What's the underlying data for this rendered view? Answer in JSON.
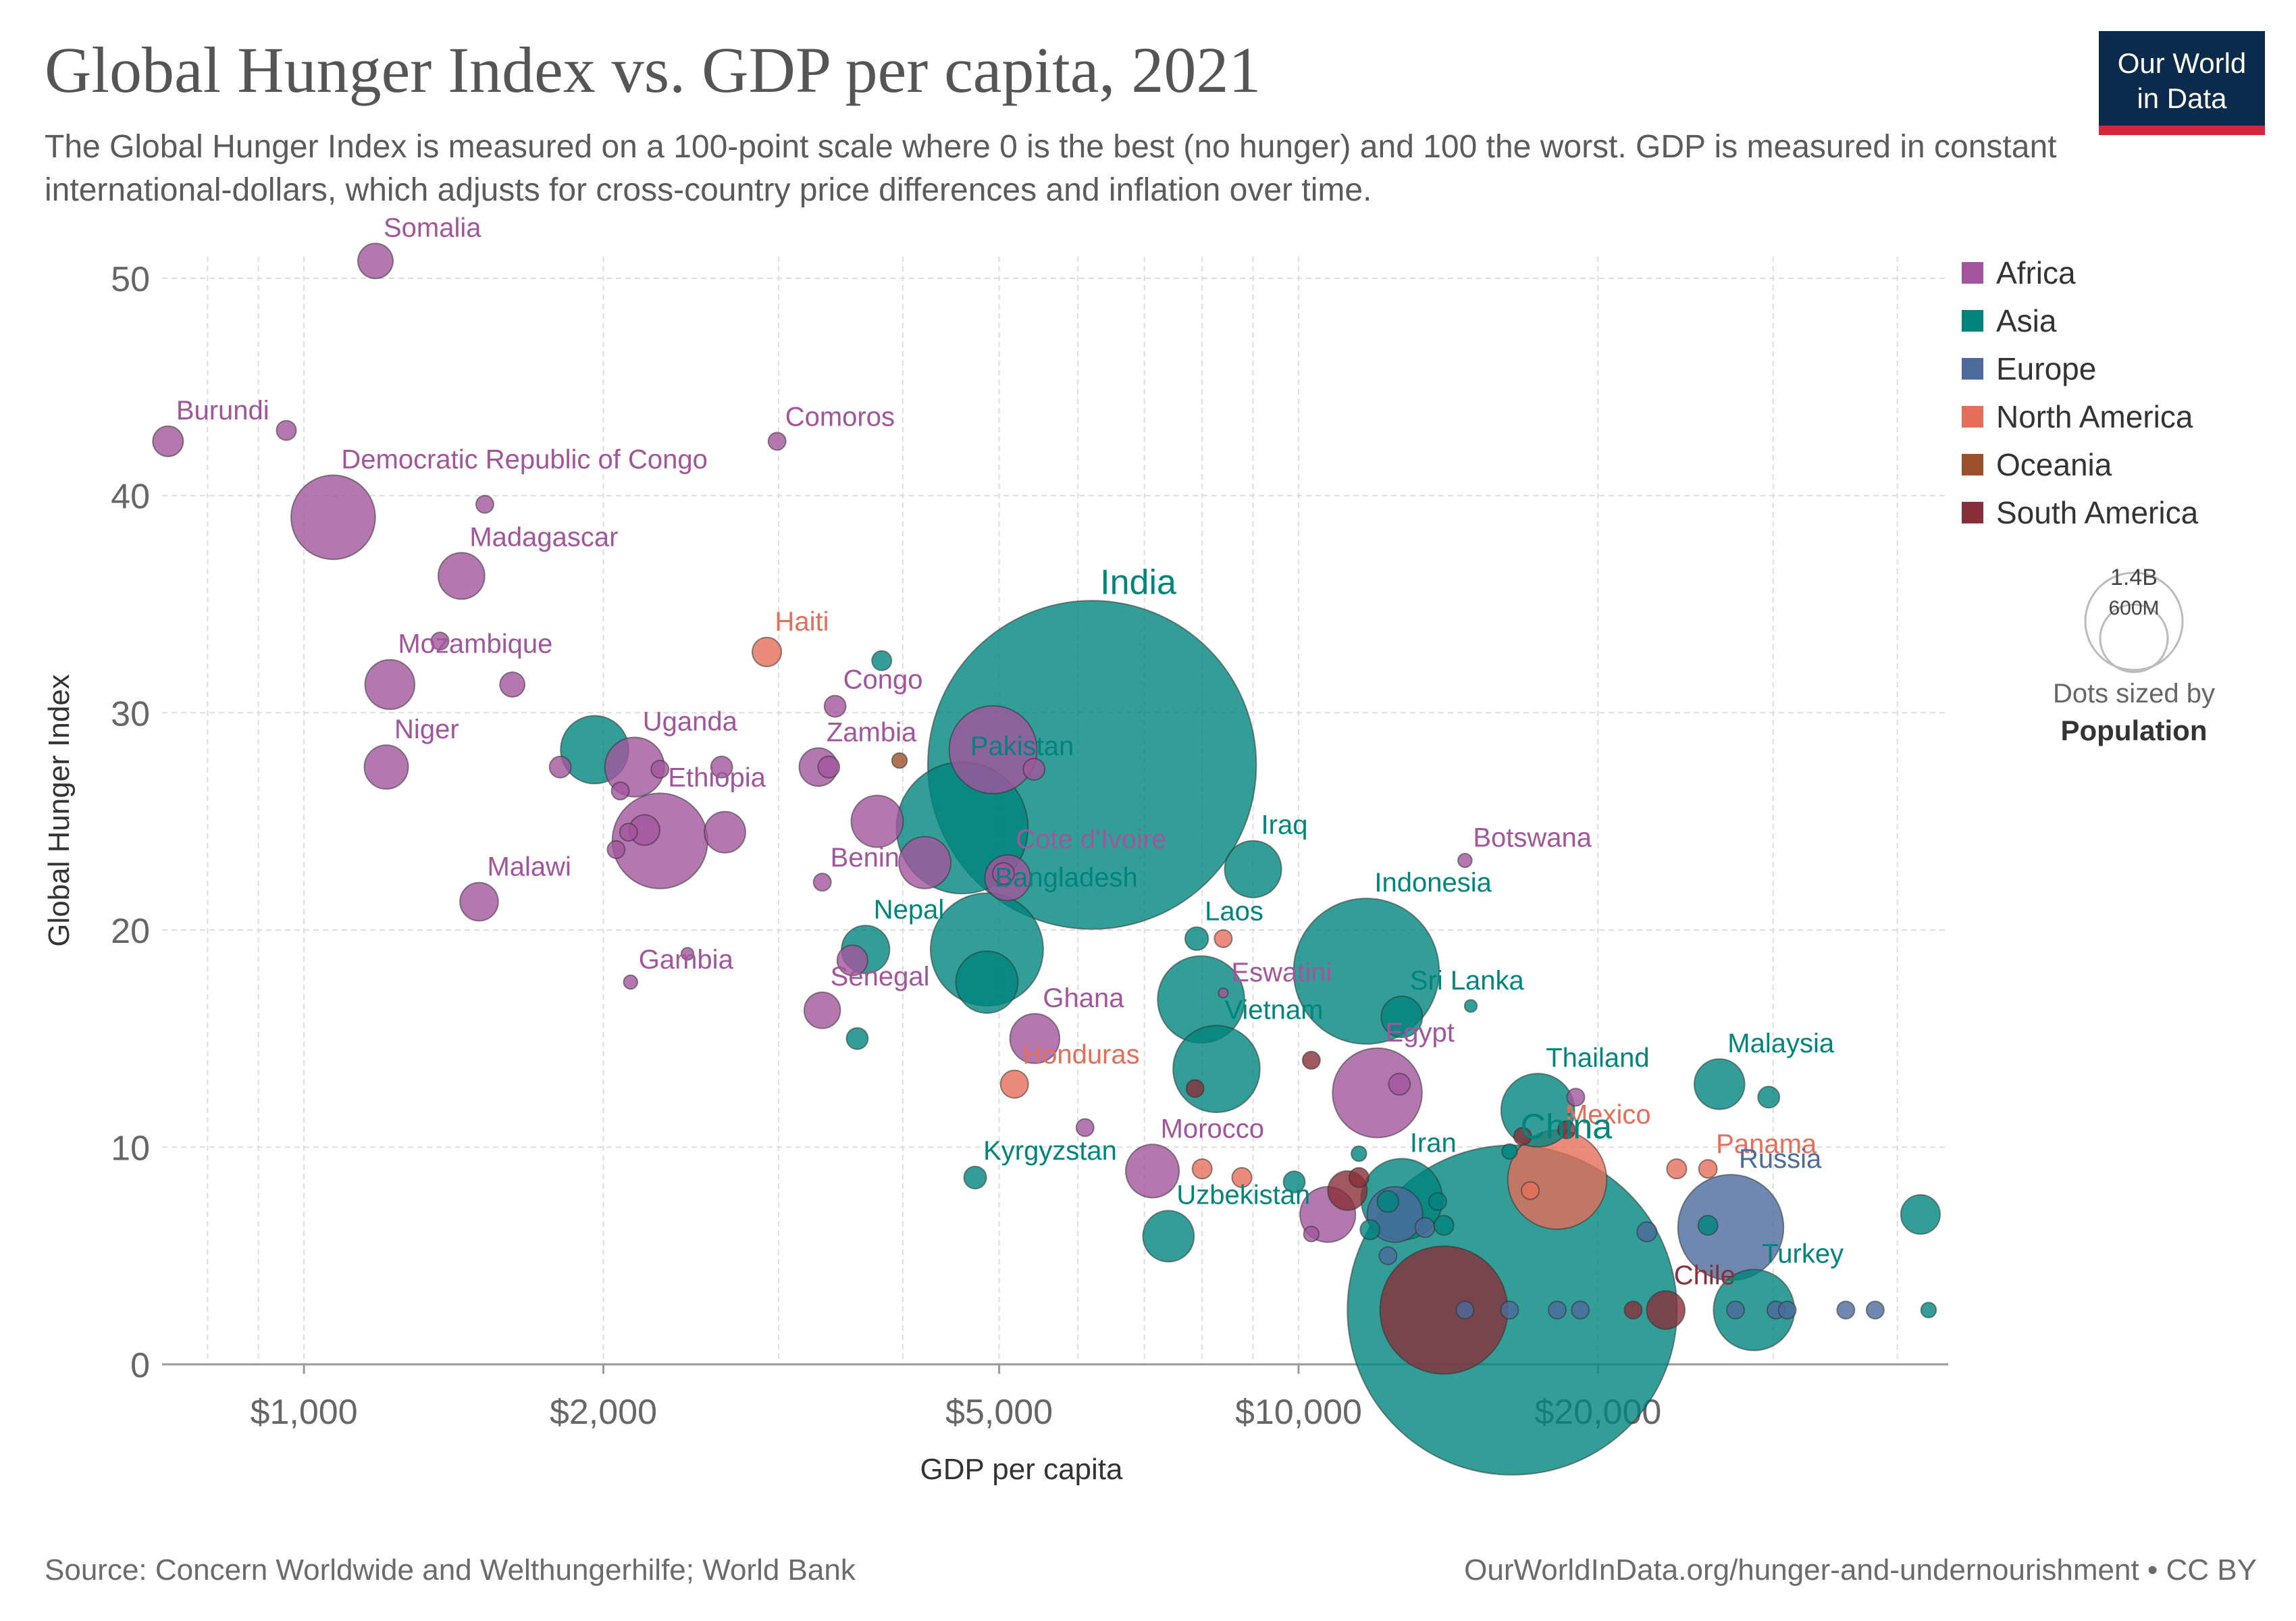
{
  "header": {
    "title": "Global Hunger Index vs. GDP per capita, 2021",
    "subtitle": "The Global Hunger Index is measured on a 100-point scale where 0 is the best (no hunger) and 100 the worst. GDP is measured in constant international-dollars, which adjusts for cross-country price differences and inflation over time.",
    "logo_line1": "Our World",
    "logo_line2": "in Data"
  },
  "footer": {
    "source": "Source: Concern Worldwide and Welthungerhilfe; World Bank",
    "url": "OurWorldInData.org/hunger-and-undernourishment • CC BY"
  },
  "colors": {
    "Africa": "#a2559c",
    "Asia": "#00847e",
    "Europe": "#4c6a9c",
    "North America": "#e56e5a",
    "Oceania": "#9a5129",
    "South America": "#883039"
  },
  "chart_data": {
    "type": "scatter",
    "xlabel": "GDP per capita",
    "ylabel": "Global Hunger Index",
    "x_scale": "log",
    "xlim": [
      720,
      45000
    ],
    "ylim": [
      0,
      51
    ],
    "x_ticks": [
      {
        "value": 1000,
        "label": "$1,000"
      },
      {
        "value": 2000,
        "label": "$2,000"
      },
      {
        "value": 5000,
        "label": "$5,000"
      },
      {
        "value": 10000,
        "label": "$10,000"
      },
      {
        "value": 20000,
        "label": "$20,000"
      }
    ],
    "y_ticks": [
      0,
      10,
      20,
      30,
      40,
      50
    ],
    "grid": true,
    "legend": {
      "placement": "right",
      "entries": [
        "Africa",
        "Asia",
        "Europe",
        "North America",
        "Oceania",
        "South America"
      ],
      "size_legend": {
        "large": "1.4B",
        "small": "600M",
        "caption": "Dots sized by",
        "caption_bold": "Population"
      }
    },
    "points": [
      {
        "label": "Somalia",
        "x": 1180,
        "y": 50.8,
        "pop": 16,
        "region": "Africa"
      },
      {
        "label": "Burundi",
        "x": 730,
        "y": 42.5,
        "pop": 12,
        "region": "Africa"
      },
      {
        "x": 960,
        "y": 43.0,
        "pop": 5,
        "region": "Africa"
      },
      {
        "label": "Democratic Republic of Congo",
        "x": 1070,
        "y": 39.0,
        "pop": 92,
        "region": "Africa"
      },
      {
        "x": 1520,
        "y": 39.6,
        "pop": 4,
        "region": "Africa"
      },
      {
        "label": "Madagascar",
        "x": 1440,
        "y": 36.3,
        "pop": 28,
        "region": "Africa"
      },
      {
        "x": 1370,
        "y": 33.3,
        "pop": 4,
        "region": "Africa"
      },
      {
        "label": "Mozambique",
        "x": 1220,
        "y": 31.3,
        "pop": 32,
        "region": "Africa"
      },
      {
        "x": 1620,
        "y": 31.3,
        "pop": 8,
        "region": "Africa"
      },
      {
        "label": "Niger",
        "x": 1210,
        "y": 27.5,
        "pop": 25,
        "region": "Africa"
      },
      {
        "x": 1810,
        "y": 27.5,
        "pop": 6,
        "region": "Africa"
      },
      {
        "x": 1960,
        "y": 28.3,
        "pop": 60,
        "region": "Asia"
      },
      {
        "label": "Uganda",
        "x": 2150,
        "y": 27.5,
        "pop": 46,
        "region": "Africa"
      },
      {
        "x": 2280,
        "y": 27.4,
        "pop": 4,
        "region": "Africa"
      },
      {
        "x": 2630,
        "y": 27.5,
        "pop": 6,
        "region": "Africa"
      },
      {
        "x": 2080,
        "y": 26.4,
        "pop": 4,
        "region": "Africa"
      },
      {
        "x": 2120,
        "y": 24.5,
        "pop": 4,
        "region": "Africa"
      },
      {
        "x": 2200,
        "y": 24.6,
        "pop": 12,
        "region": "Africa"
      },
      {
        "label": "Ethiopia",
        "x": 2280,
        "y": 24.1,
        "pop": 118,
        "region": "Africa"
      },
      {
        "x": 2650,
        "y": 24.5,
        "pop": 22,
        "region": "Africa"
      },
      {
        "x": 2060,
        "y": 23.7,
        "pop": 4,
        "region": "Africa"
      },
      {
        "label": "Malawi",
        "x": 1500,
        "y": 21.3,
        "pop": 19,
        "region": "Africa"
      },
      {
        "label": "Gambia",
        "x": 2130,
        "y": 17.6,
        "pop": 2.5,
        "region": "Africa"
      },
      {
        "x": 2430,
        "y": 18.9,
        "pop": 2,
        "region": "Africa"
      },
      {
        "label": "Haiti",
        "x": 2920,
        "y": 32.8,
        "pop": 11,
        "region": "North America"
      },
      {
        "label": "Comoros",
        "x": 2990,
        "y": 42.5,
        "pop": 4,
        "region": "Africa"
      },
      {
        "x": 3810,
        "y": 32.4,
        "pop": 5,
        "region": "Asia"
      },
      {
        "label": "Congo",
        "x": 3420,
        "y": 30.3,
        "pop": 6,
        "region": "Africa"
      },
      {
        "label": "Zambia",
        "x": 3290,
        "y": 27.5,
        "pop": 19,
        "region": "Africa"
      },
      {
        "x": 3370,
        "y": 27.5,
        "pop": 6,
        "region": "Africa"
      },
      {
        "x": 3970,
        "y": 27.8,
        "pop": 3,
        "region": "Oceania"
      },
      {
        "x": 4930,
        "y": 28.3,
        "pop": 100,
        "region": "Africa"
      },
      {
        "x": 5420,
        "y": 27.4,
        "pop": 6,
        "region": "Africa"
      },
      {
        "label": "India",
        "x": 6200,
        "y": 27.6,
        "pop": 1400,
        "region": "Asia"
      },
      {
        "x": 3770,
        "y": 25.0,
        "pop": 35,
        "region": "Africa"
      },
      {
        "label": "Pakistan",
        "x": 4590,
        "y": 24.7,
        "pop": 225,
        "region": "Asia"
      },
      {
        "x": 4210,
        "y": 23.1,
        "pop": 35,
        "region": "Africa"
      },
      {
        "label": "Benin",
        "x": 3320,
        "y": 22.2,
        "pop": 4,
        "region": "Africa"
      },
      {
        "label": "Cote d'Ivoire",
        "x": 5100,
        "y": 22.4,
        "pop": 27,
        "region": "Africa"
      },
      {
        "x": 5050,
        "y": 22.6,
        "pop": 6,
        "region": "Africa"
      },
      {
        "label": "Iraq",
        "x": 9000,
        "y": 22.8,
        "pop": 42,
        "region": "Asia"
      },
      {
        "label": "Botswana",
        "x": 14700,
        "y": 23.2,
        "pop": 2.5,
        "region": "Africa"
      },
      {
        "label": "Nepal",
        "x": 3670,
        "y": 19.1,
        "pop": 30,
        "region": "Asia"
      },
      {
        "x": 3560,
        "y": 18.6,
        "pop": 12,
        "region": "Africa"
      },
      {
        "label": "Bangladesh",
        "x": 4860,
        "y": 19.1,
        "pop": 165,
        "region": "Asia"
      },
      {
        "x": 4860,
        "y": 17.6,
        "pop": 50,
        "region": "Asia"
      },
      {
        "label": "Senegal",
        "x": 3320,
        "y": 16.3,
        "pop": 17,
        "region": "Africa"
      },
      {
        "x": 3600,
        "y": 15.0,
        "pop": 6,
        "region": "Asia"
      },
      {
        "label": "Laos",
        "x": 7900,
        "y": 19.6,
        "pop": 7,
        "region": "Asia"
      },
      {
        "x": 8400,
        "y": 19.6,
        "pop": 4,
        "region": "North America"
      },
      {
        "label": "Indonesia",
        "x": 11700,
        "y": 18.1,
        "pop": 275,
        "region": "Asia"
      },
      {
        "label": "Eswatini",
        "x": 8400,
        "y": 17.1,
        "pop": 1.2,
        "region": "Africa"
      },
      {
        "x": 7980,
        "y": 16.8,
        "pop": 98,
        "region": "Asia"
      },
      {
        "label": "Sri Lanka",
        "x": 12700,
        "y": 16.0,
        "pop": 22,
        "region": "Asia"
      },
      {
        "x": 14900,
        "y": 16.5,
        "pop": 2,
        "region": "Asia"
      },
      {
        "label": "Ghana",
        "x": 5430,
        "y": 15.0,
        "pop": 32,
        "region": "Africa"
      },
      {
        "label": "Honduras",
        "x": 5180,
        "y": 12.9,
        "pop": 10,
        "region": "North America"
      },
      {
        "label": "Vietnam",
        "x": 8270,
        "y": 13.6,
        "pop": 98,
        "region": "Asia"
      },
      {
        "x": 7870,
        "y": 12.7,
        "pop": 4,
        "region": "South America"
      },
      {
        "x": 10300,
        "y": 14.0,
        "pop": 4,
        "region": "South America"
      },
      {
        "label": "Egypt",
        "x": 12000,
        "y": 12.5,
        "pop": 104,
        "region": "Africa"
      },
      {
        "x": 12630,
        "y": 12.9,
        "pop": 6,
        "region": "Africa"
      },
      {
        "label": "Thailand",
        "x": 17400,
        "y": 11.7,
        "pop": 70,
        "region": "Asia"
      },
      {
        "x": 19000,
        "y": 12.3,
        "pop": 4,
        "region": "Africa"
      },
      {
        "label": "Malaysia",
        "x": 26500,
        "y": 12.9,
        "pop": 33,
        "region": "Asia"
      },
      {
        "x": 29700,
        "y": 12.3,
        "pop": 6,
        "region": "Asia"
      },
      {
        "x": 6100,
        "y": 10.9,
        "pop": 4,
        "region": "Africa"
      },
      {
        "label": "Kyrgyzstan",
        "x": 4730,
        "y": 8.6,
        "pop": 6.5,
        "region": "Asia"
      },
      {
        "label": "Morocco",
        "x": 7130,
        "y": 8.9,
        "pop": 37,
        "region": "Africa"
      },
      {
        "x": 8000,
        "y": 9.0,
        "pop": 5,
        "region": "North America"
      },
      {
        "x": 8770,
        "y": 8.6,
        "pop": 5,
        "region": "North America"
      },
      {
        "x": 9900,
        "y": 8.4,
        "pop": 6,
        "region": "Asia"
      },
      {
        "x": 11500,
        "y": 9.7,
        "pop": 3,
        "region": "Asia"
      },
      {
        "x": 11500,
        "y": 8.6,
        "pop": 5,
        "region": "South America"
      },
      {
        "x": 11200,
        "y": 8.0,
        "pop": 20,
        "region": "South America"
      },
      {
        "x": 12300,
        "y": 7.5,
        "pop": 6,
        "region": "Asia"
      },
      {
        "label": "Iran",
        "x": 12700,
        "y": 7.6,
        "pop": 86,
        "region": "Asia"
      },
      {
        "x": 13800,
        "y": 7.5,
        "pop": 4,
        "region": "Asia"
      },
      {
        "x": 12500,
        "y": 6.9,
        "pop": 40,
        "region": "Europe"
      },
      {
        "x": 11800,
        "y": 6.2,
        "pop": 5,
        "region": "Asia"
      },
      {
        "x": 13400,
        "y": 6.3,
        "pop": 5,
        "region": "Europe"
      },
      {
        "x": 14000,
        "y": 6.4,
        "pop": 5,
        "region": "Asia"
      },
      {
        "x": 12300,
        "y": 5.0,
        "pop": 4,
        "region": "Europe"
      },
      {
        "x": 10700,
        "y": 6.9,
        "pop": 40,
        "region": "Africa"
      },
      {
        "x": 10300,
        "y": 6.0,
        "pop": 3,
        "region": "Africa"
      },
      {
        "label": "Uzbekistan",
        "x": 7400,
        "y": 5.9,
        "pop": 34,
        "region": "Asia"
      },
      {
        "x": 16300,
        "y": 9.8,
        "pop": 3,
        "region": "Asia"
      },
      {
        "x": 16800,
        "y": 10.5,
        "pop": 4,
        "region": "South America"
      },
      {
        "x": 18600,
        "y": 10.8,
        "pop": 4,
        "region": "South America"
      },
      {
        "label": "Mexico",
        "x": 18200,
        "y": 8.5,
        "pop": 127,
        "region": "North America"
      },
      {
        "x": 17100,
        "y": 8.0,
        "pop": 4,
        "region": "North America"
      },
      {
        "x": 24000,
        "y": 9.0,
        "pop": 5,
        "region": "North America"
      },
      {
        "label": "Panama",
        "x": 25800,
        "y": 9.0,
        "pop": 4.3,
        "region": "North America"
      },
      {
        "x": 22400,
        "y": 6.1,
        "pop": 5,
        "region": "Europe"
      },
      {
        "x": 25800,
        "y": 6.4,
        "pop": 5,
        "region": "Asia"
      },
      {
        "label": "Russia",
        "x": 27200,
        "y": 6.3,
        "pop": 145,
        "region": "Europe"
      },
      {
        "x": 42200,
        "y": 6.9,
        "pop": 20,
        "region": "Asia"
      },
      {
        "label": "China",
        "x": 16400,
        "y": 2.5,
        "pop": 1410,
        "region": "Asia"
      },
      {
        "x": 14000,
        "y": 2.5,
        "pop": 212,
        "region": "South America"
      },
      {
        "x": 14700,
        "y": 2.5,
        "pop": 4,
        "region": "Europe"
      },
      {
        "x": 16300,
        "y": 2.5,
        "pop": 4,
        "region": "Europe"
      },
      {
        "x": 18200,
        "y": 2.5,
        "pop": 4,
        "region": "Europe"
      },
      {
        "x": 19200,
        "y": 2.5,
        "pop": 4,
        "region": "Europe"
      },
      {
        "x": 21700,
        "y": 2.5,
        "pop": 4,
        "region": "South America"
      },
      {
        "label": "Chile",
        "x": 23400,
        "y": 2.5,
        "pop": 19,
        "region": "South America"
      },
      {
        "x": 27500,
        "y": 2.5,
        "pop": 4,
        "region": "Europe"
      },
      {
        "label": "Turkey",
        "x": 28700,
        "y": 2.5,
        "pop": 85,
        "region": "Asia"
      },
      {
        "x": 30200,
        "y": 2.5,
        "pop": 4,
        "region": "Europe"
      },
      {
        "x": 31000,
        "y": 2.5,
        "pop": 4,
        "region": "Europe"
      },
      {
        "x": 35500,
        "y": 2.5,
        "pop": 4,
        "region": "Europe"
      },
      {
        "x": 38000,
        "y": 2.5,
        "pop": 4,
        "region": "Europe"
      },
      {
        "x": 43000,
        "y": 2.5,
        "pop": 3,
        "region": "Asia"
      }
    ]
  }
}
